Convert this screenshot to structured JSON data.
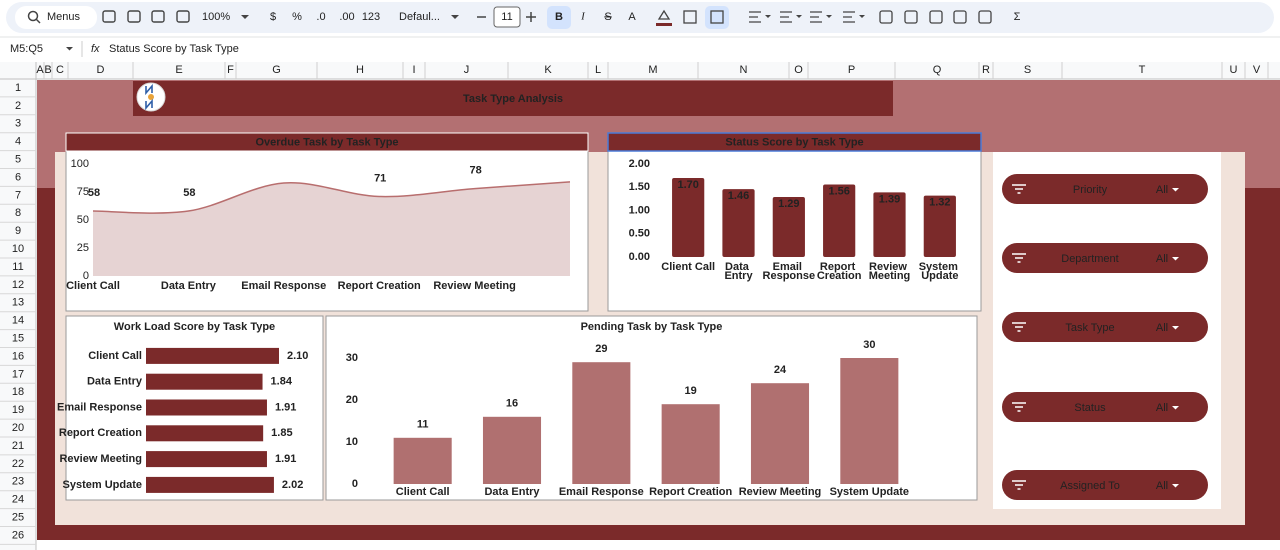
{
  "toolbar": {
    "search": "Menus",
    "zoom": "100%",
    "currency": "$",
    "percent": "%",
    "decrease_decimal": ".0",
    "increase_decimal": ".00",
    "number_format": "123",
    "font": "Defaul...",
    "font_size": "11",
    "bold": "B",
    "italic": "I",
    "strikethrough": "S",
    "text_color": "A",
    "functions": "Σ"
  },
  "formula_bar": {
    "cell_ref": "M5:Q5",
    "fx": "fx",
    "content": "Status Score by Task Type"
  },
  "columns": [
    "A",
    "B",
    "C",
    "D",
    "E",
    "F",
    "G",
    "H",
    "I",
    "J",
    "K",
    "L",
    "M",
    "N",
    "O",
    "P",
    "Q",
    "R",
    "S",
    "T",
    "U",
    "V"
  ],
  "rows": [
    1,
    2,
    3,
    4,
    5,
    6,
    7,
    8,
    9,
    10,
    11,
    12,
    13,
    14,
    15,
    16,
    17,
    18,
    19,
    20,
    21,
    22,
    23,
    24,
    25,
    26
  ],
  "dashboard": {
    "title": "Task Type Analysis"
  },
  "charts": [
    {
      "type": "area",
      "title": "Overdue Task by Task Type",
      "categories": [
        "Client Call",
        "Data Entry",
        "Email Response",
        "Report Creation",
        "Review Meeting",
        null
      ],
      "values": [
        58,
        58,
        83,
        71,
        78,
        84
      ],
      "value_labels": [
        "58",
        "58",
        null,
        "71",
        "78",
        null
      ],
      "ylim": [
        0,
        100
      ],
      "yticks": [
        0,
        25,
        50,
        75,
        100
      ],
      "color": "#b86e6e"
    },
    {
      "type": "bar",
      "title": "Status Score by Task Type",
      "categories": [
        "Client Call",
        "Data Entry",
        "Email Response",
        "Report Creation",
        "Review Meeting",
        "System Update"
      ],
      "values": [
        1.7,
        1.46,
        1.29,
        1.56,
        1.39,
        1.32
      ],
      "value_labels": [
        "1.70",
        "1.46",
        "1.29",
        "1.56",
        "1.39",
        "1.32"
      ],
      "ylim": [
        0,
        2
      ],
      "yticks": [
        {
          "value": 0,
          "label": "0.00"
        },
        {
          "value": 0.5,
          "label": "0.50"
        },
        {
          "value": 1,
          "label": "1.00"
        },
        {
          "value": 1.5,
          "label": "1.50"
        },
        {
          "value": 2,
          "label": "2.00"
        }
      ],
      "color": "#7b2a2a"
    },
    {
      "type": "hbar",
      "title": "Work Load Score by Task Type",
      "categories": [
        "Client Call",
        "Data Entry",
        "Email Response",
        "Report Creation",
        "Review Meeting",
        "System Update"
      ],
      "values": [
        2.1,
        1.84,
        1.91,
        1.85,
        1.91,
        2.02
      ],
      "value_labels": [
        "2.10",
        "1.84",
        "1.91",
        "1.85",
        "1.91",
        "2.02"
      ],
      "color": "#7b2a2a"
    },
    {
      "type": "bar",
      "title": "Pending Task by Task Type",
      "categories": [
        "Client Call",
        "Data Entry",
        "Email Response",
        "Report Creation",
        "Review Meeting",
        "System Update"
      ],
      "values": [
        11,
        16,
        29,
        19,
        24,
        30
      ],
      "ylim": [
        0,
        30
      ],
      "yticks": [
        0,
        10,
        20,
        30
      ],
      "color": "#b07070"
    }
  ],
  "filters": [
    {
      "label": "Priority",
      "value": "All"
    },
    {
      "label": "Department",
      "value": "All"
    },
    {
      "label": "Task Type",
      "value": "All"
    },
    {
      "label": "Status",
      "value": "All"
    },
    {
      "label": "Assigned To",
      "value": "All"
    }
  ]
}
